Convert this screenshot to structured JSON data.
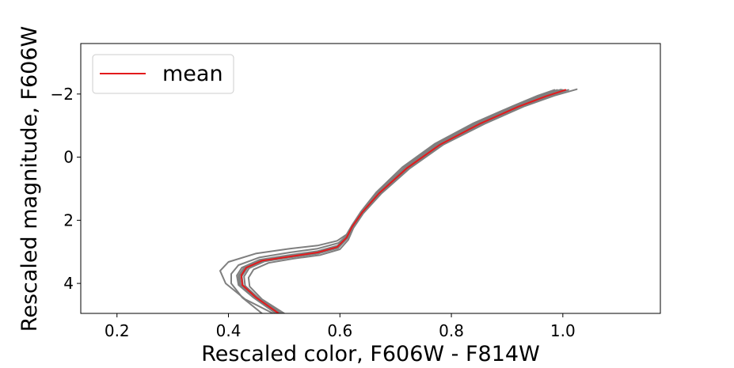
{
  "chart_data": {
    "type": "line",
    "xlabel": "Rescaled color, F606W - F814W",
    "ylabel": "Rescaled magnitude, F606W",
    "xlim": [
      0.135,
      1.175
    ],
    "ylim": [
      4.95,
      -3.6
    ],
    "y_inverted": true,
    "grid": false,
    "legend_placement": "top-left",
    "x_ticks": [
      {
        "value": 0.2,
        "label": "0.2"
      },
      {
        "value": 0.4,
        "label": "0.4"
      },
      {
        "value": 0.6,
        "label": "0.6"
      },
      {
        "value": 0.8,
        "label": "0.8"
      },
      {
        "value": 1.0,
        "label": "1.0"
      }
    ],
    "y_ticks": [
      {
        "value": -2,
        "label": "−2"
      },
      {
        "value": 0,
        "label": "0"
      },
      {
        "value": 2,
        "label": "2"
      },
      {
        "value": 4,
        "label": "4"
      }
    ],
    "series": [
      {
        "name": "mean",
        "color": "#e31a1c",
        "width": 2,
        "in_legend": true,
        "points": [
          [
            0.49,
            4.95
          ],
          [
            0.45,
            4.45
          ],
          [
            0.425,
            4.05
          ],
          [
            0.423,
            3.75
          ],
          [
            0.432,
            3.5
          ],
          [
            0.46,
            3.28
          ],
          [
            0.51,
            3.15
          ],
          [
            0.56,
            3.02
          ],
          [
            0.595,
            2.85
          ],
          [
            0.612,
            2.55
          ],
          [
            0.622,
            2.2
          ],
          [
            0.64,
            1.75
          ],
          [
            0.67,
            1.15
          ],
          [
            0.72,
            0.35
          ],
          [
            0.78,
            -0.4
          ],
          [
            0.85,
            -1.05
          ],
          [
            0.92,
            -1.6
          ],
          [
            0.97,
            -1.93
          ],
          [
            1.005,
            -2.13
          ]
        ]
      },
      {
        "color": "#7f7f7f",
        "width": 2,
        "in_legend": false,
        "points": [
          [
            0.48,
            4.95
          ],
          [
            0.43,
            4.5
          ],
          [
            0.395,
            4.0
          ],
          [
            0.385,
            3.6
          ],
          [
            0.4,
            3.32
          ],
          [
            0.45,
            3.05
          ],
          [
            0.51,
            2.9
          ],
          [
            0.56,
            2.8
          ],
          [
            0.595,
            2.65
          ],
          [
            0.612,
            2.45
          ],
          [
            0.622,
            2.15
          ],
          [
            0.638,
            1.72
          ],
          [
            0.665,
            1.12
          ],
          [
            0.712,
            0.32
          ],
          [
            0.77,
            -0.42
          ],
          [
            0.84,
            -1.08
          ],
          [
            0.91,
            -1.62
          ],
          [
            0.955,
            -1.95
          ],
          [
            0.985,
            -2.13
          ]
        ]
      },
      {
        "color": "#7f7f7f",
        "width": 2,
        "in_legend": false,
        "points": [
          [
            0.46,
            4.95
          ],
          [
            0.425,
            4.45
          ],
          [
            0.405,
            4.0
          ],
          [
            0.405,
            3.7
          ],
          [
            0.418,
            3.42
          ],
          [
            0.455,
            3.18
          ],
          [
            0.51,
            3.02
          ],
          [
            0.56,
            2.9
          ],
          [
            0.597,
            2.72
          ],
          [
            0.613,
            2.48
          ],
          [
            0.622,
            2.15
          ],
          [
            0.639,
            1.73
          ],
          [
            0.667,
            1.14
          ],
          [
            0.715,
            0.34
          ],
          [
            0.772,
            -0.41
          ],
          [
            0.842,
            -1.07
          ],
          [
            0.912,
            -1.62
          ],
          [
            0.958,
            -1.94
          ],
          [
            0.99,
            -2.13
          ]
        ]
      },
      {
        "color": "#7f7f7f",
        "width": 2,
        "in_legend": false,
        "points": [
          [
            0.485,
            4.95
          ],
          [
            0.445,
            4.45
          ],
          [
            0.418,
            4.05
          ],
          [
            0.415,
            3.75
          ],
          [
            0.424,
            3.5
          ],
          [
            0.456,
            3.25
          ],
          [
            0.51,
            3.1
          ],
          [
            0.56,
            2.98
          ],
          [
            0.596,
            2.8
          ],
          [
            0.612,
            2.52
          ],
          [
            0.622,
            2.18
          ],
          [
            0.64,
            1.74
          ],
          [
            0.668,
            1.14
          ],
          [
            0.717,
            0.34
          ],
          [
            0.775,
            -0.41
          ],
          [
            0.845,
            -1.06
          ],
          [
            0.915,
            -1.61
          ],
          [
            0.962,
            -1.94
          ],
          [
            0.995,
            -2.13
          ]
        ]
      },
      {
        "color": "#7f7f7f",
        "width": 2,
        "in_legend": false,
        "points": [
          [
            0.49,
            4.95
          ],
          [
            0.448,
            4.45
          ],
          [
            0.422,
            4.05
          ],
          [
            0.42,
            3.75
          ],
          [
            0.43,
            3.5
          ],
          [
            0.46,
            3.28
          ],
          [
            0.51,
            3.14
          ],
          [
            0.56,
            3.01
          ],
          [
            0.595,
            2.84
          ],
          [
            0.612,
            2.55
          ],
          [
            0.622,
            2.2
          ],
          [
            0.64,
            1.75
          ],
          [
            0.67,
            1.15
          ],
          [
            0.72,
            0.35
          ],
          [
            0.778,
            -0.4
          ],
          [
            0.848,
            -1.05
          ],
          [
            0.918,
            -1.6
          ],
          [
            0.965,
            -1.93
          ],
          [
            1.0,
            -2.13
          ]
        ]
      },
      {
        "color": "#7f7f7f",
        "width": 2,
        "in_legend": false,
        "points": [
          [
            0.495,
            4.95
          ],
          [
            0.455,
            4.48
          ],
          [
            0.43,
            4.08
          ],
          [
            0.428,
            3.78
          ],
          [
            0.437,
            3.52
          ],
          [
            0.465,
            3.3
          ],
          [
            0.51,
            3.18
          ],
          [
            0.56,
            3.06
          ],
          [
            0.597,
            2.88
          ],
          [
            0.613,
            2.58
          ],
          [
            0.623,
            2.22
          ],
          [
            0.641,
            1.76
          ],
          [
            0.672,
            1.15
          ],
          [
            0.722,
            0.35
          ],
          [
            0.782,
            -0.4
          ],
          [
            0.855,
            -1.05
          ],
          [
            0.925,
            -1.6
          ],
          [
            0.975,
            -1.93
          ],
          [
            1.01,
            -2.13
          ]
        ]
      },
      {
        "color": "#7f7f7f",
        "width": 2,
        "in_legend": false,
        "points": [
          [
            0.5,
            4.95
          ],
          [
            0.46,
            4.5
          ],
          [
            0.438,
            4.1
          ],
          [
            0.436,
            3.82
          ],
          [
            0.445,
            3.56
          ],
          [
            0.472,
            3.35
          ],
          [
            0.515,
            3.22
          ],
          [
            0.565,
            3.1
          ],
          [
            0.6,
            2.92
          ],
          [
            0.615,
            2.62
          ],
          [
            0.624,
            2.25
          ],
          [
            0.642,
            1.78
          ],
          [
            0.674,
            1.16
          ],
          [
            0.725,
            0.36
          ],
          [
            0.786,
            -0.4
          ],
          [
            0.86,
            -1.06
          ],
          [
            0.932,
            -1.62
          ],
          [
            0.985,
            -1.95
          ],
          [
            1.025,
            -2.15
          ]
        ]
      },
      {
        "color": "#7f7f7f",
        "width": 2,
        "in_legend": false,
        "points": [
          [
            0.487,
            4.95
          ],
          [
            0.447,
            4.45
          ],
          [
            0.42,
            4.05
          ],
          [
            0.418,
            3.76
          ],
          [
            0.428,
            3.5
          ],
          [
            0.458,
            3.27
          ],
          [
            0.51,
            3.12
          ],
          [
            0.56,
            3.0
          ],
          [
            0.596,
            2.82
          ],
          [
            0.612,
            2.53
          ],
          [
            0.622,
            2.19
          ],
          [
            0.64,
            1.75
          ],
          [
            0.669,
            1.15
          ],
          [
            0.718,
            0.35
          ],
          [
            0.776,
            -0.4
          ],
          [
            0.846,
            -1.06
          ],
          [
            0.916,
            -1.61
          ],
          [
            0.963,
            -1.94
          ],
          [
            0.997,
            -2.14
          ]
        ]
      },
      {
        "color": "#7f7f7f",
        "width": 2,
        "in_legend": false,
        "points": [
          [
            0.492,
            4.95
          ],
          [
            0.452,
            4.46
          ],
          [
            0.426,
            4.06
          ],
          [
            0.424,
            3.77
          ],
          [
            0.434,
            3.51
          ],
          [
            0.462,
            3.29
          ],
          [
            0.512,
            3.16
          ],
          [
            0.562,
            3.04
          ],
          [
            0.597,
            2.86
          ],
          [
            0.613,
            2.56
          ],
          [
            0.622,
            2.21
          ],
          [
            0.641,
            1.76
          ],
          [
            0.671,
            1.15
          ],
          [
            0.721,
            0.35
          ],
          [
            0.78,
            -0.4
          ],
          [
            0.852,
            -1.05
          ],
          [
            0.922,
            -1.6
          ],
          [
            0.97,
            -1.93
          ],
          [
            1.004,
            -2.13
          ]
        ]
      }
    ]
  }
}
